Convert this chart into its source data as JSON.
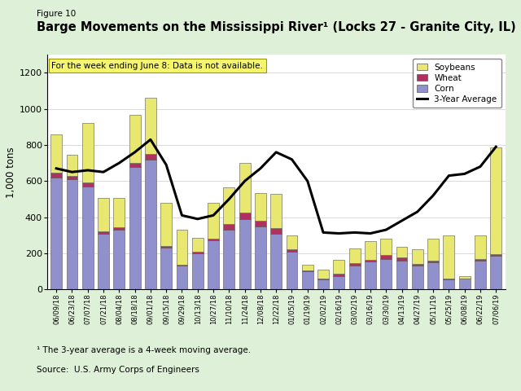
{
  "title": "Barge Movements on the Mississippi River¹ (Locks 27 - Granite City, IL)",
  "figure_label": "Figure 10",
  "ylabel": "1,000 tons",
  "footnote1": "¹ The 3-year average is a 4-week moving average.",
  "footnote2": "Source:  U.S. Army Corps of Engineers",
  "annotation": "For the week ending June 8: Data is not available.",
  "background_color": "#dff0d8",
  "plot_bg_color": "#ffffff",
  "ylim": [
    0,
    1300
  ],
  "yticks": [
    0,
    200,
    400,
    600,
    800,
    1000,
    1200
  ],
  "dates": [
    "06/09/18",
    "06/23/18",
    "07/07/18",
    "07/21/18",
    "08/04/18",
    "08/18/18",
    "09/01/18",
    "09/15/18",
    "09/29/18",
    "10/13/18",
    "10/27/18",
    "11/10/18",
    "11/24/18",
    "12/08/18",
    "12/22/18",
    "01/05/19",
    "01/19/19",
    "02/02/19",
    "02/16/19",
    "03/02/19",
    "03/16/19",
    "03/30/19",
    "04/13/19",
    "04/27/19",
    "05/11/19",
    "05/25/19",
    "06/08/19",
    "06/22/19",
    "07/06/19"
  ],
  "corn": [
    620,
    610,
    570,
    310,
    330,
    680,
    720,
    230,
    130,
    200,
    270,
    330,
    390,
    350,
    310,
    210,
    100,
    55,
    75,
    130,
    155,
    170,
    160,
    130,
    150,
    55,
    60,
    160,
    185
  ],
  "wheat": [
    25,
    20,
    20,
    10,
    15,
    20,
    30,
    10,
    5,
    10,
    10,
    30,
    35,
    30,
    30,
    10,
    5,
    5,
    10,
    15,
    10,
    20,
    15,
    10,
    10,
    5,
    0,
    10,
    10
  ],
  "soybeans": [
    215,
    115,
    330,
    185,
    160,
    265,
    310,
    240,
    195,
    75,
    200,
    205,
    275,
    155,
    190,
    80,
    30,
    50,
    80,
    80,
    100,
    90,
    60,
    80,
    120,
    240,
    15,
    130,
    590
  ],
  "avg_3yr": [
    670,
    650,
    660,
    650,
    700,
    760,
    830,
    690,
    410,
    390,
    410,
    500,
    600,
    670,
    760,
    720,
    600,
    315,
    310,
    315,
    310,
    330,
    380,
    430,
    520,
    630,
    640,
    680,
    790
  ],
  "corn_color": "#9090cc",
  "wheat_color": "#b03060",
  "soybean_color": "#e8e870",
  "avg_color": "#000000",
  "bar_edge_color": "#555555",
  "legend_labels": [
    "Soybeans",
    "Wheat",
    "Corn",
    "3-Year Average"
  ]
}
